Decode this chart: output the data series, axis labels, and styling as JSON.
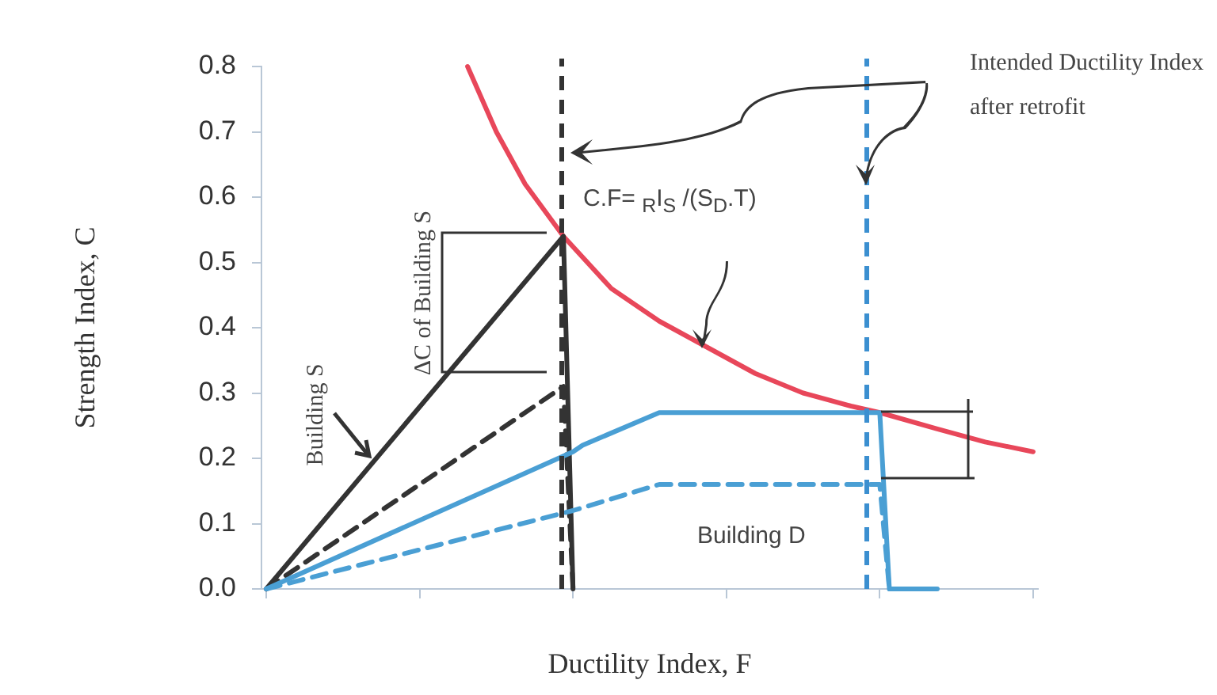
{
  "chart_data": {
    "type": "line",
    "xlabel": "Ductility Index, F",
    "ylabel": "Strength Index, C",
    "categories": [
      null,
      null,
      null,
      null,
      null,
      null,
      null,
      null,
      null,
      null,
      null,
      null,
      null,
      null,
      null,
      null,
      null,
      null,
      null,
      null,
      null,
      null,
      null,
      null,
      null,
      null,
      null,
      null,
      null,
      null,
      null,
      null,
      null,
      null,
      null,
      null,
      null,
      null,
      null,
      null,
      null,
      null,
      null,
      null,
      null,
      null,
      null,
      null,
      null,
      null,
      null,
      null,
      null,
      null,
      null,
      null,
      null,
      null,
      null,
      null,
      null,
      null,
      null,
      null,
      null,
      null,
      null,
      null,
      null,
      null,
      null,
      null,
      null,
      null,
      null,
      null,
      null,
      null,
      null,
      null,
      null
    ],
    "ylim": [
      0,
      0.8
    ],
    "yticks": [
      {
        "value": 0,
        "label": "0.0"
      },
      {
        "value": 0.1,
        "label": "0.1"
      },
      {
        "value": 0.2,
        "label": "0.2"
      },
      {
        "value": 0.3,
        "label": "0.3"
      },
      {
        "value": 0.4,
        "label": "0.4"
      },
      {
        "value": 0.5,
        "label": "0.5"
      },
      {
        "value": 0.6,
        "label": "0.6"
      },
      {
        "value": 0.7,
        "label": "0.7"
      },
      {
        "value": 0.8,
        "label": "0.8"
      }
    ],
    "grid": false,
    "legend": false,
    "marker": "none",
    "series": [
      {
        "color": "#e8475a",
        "line_style": "solid",
        "values": [
          null,
          null,
          null,
          null,
          null,
          null,
          null,
          null,
          null,
          null,
          null,
          null,
          null,
          null,
          null,
          null,
          null,
          null,
          null,
          null,
          null,
          0.8,
          null,
          null,
          0.7,
          null,
          null,
          0.62,
          null,
          null,
          null,
          0.54,
          null,
          null,
          null,
          null,
          0.46,
          null,
          null,
          null,
          null,
          0.41,
          null,
          null,
          null,
          null,
          0.37,
          null,
          null,
          null,
          null,
          0.33,
          null,
          null,
          null,
          null,
          0.3,
          null,
          null,
          null,
          null,
          0.28,
          null,
          null,
          0.27,
          null,
          null,
          null,
          null,
          null,
          0.245,
          null,
          null,
          null,
          null,
          0.225,
          null,
          null,
          null,
          null,
          0.21
        ]
      },
      {
        "color": "#333333",
        "line_style": "solid",
        "values": [
          0,
          null,
          null,
          null,
          null,
          null,
          null,
          null,
          null,
          null,
          null,
          null,
          null,
          null,
          null,
          null,
          null,
          null,
          null,
          null,
          null,
          null,
          null,
          null,
          null,
          null,
          null,
          null,
          null,
          null,
          null,
          0.54,
          0,
          null,
          null,
          null,
          null,
          null,
          null,
          null,
          null,
          null,
          null,
          null,
          null,
          null,
          null,
          null,
          null,
          null,
          null,
          null,
          null,
          null,
          null,
          null,
          null,
          null,
          null,
          null,
          null,
          null,
          null,
          null,
          null,
          null,
          null,
          null,
          null,
          null,
          null,
          null,
          null,
          null,
          null,
          null,
          null,
          null,
          null,
          null,
          null
        ]
      },
      {
        "color": "#333333",
        "line_style": "dashed",
        "values": [
          0,
          null,
          null,
          null,
          null,
          null,
          null,
          null,
          null,
          null,
          null,
          null,
          null,
          null,
          null,
          null,
          null,
          null,
          null,
          null,
          null,
          null,
          null,
          null,
          null,
          null,
          null,
          null,
          null,
          null,
          null,
          0.31,
          0,
          null,
          null,
          null,
          null,
          null,
          null,
          null,
          null,
          null,
          null,
          null,
          null,
          null,
          null,
          null,
          null,
          null,
          null,
          null,
          null,
          null,
          null,
          null,
          null,
          null,
          null,
          null,
          null,
          null,
          null,
          null,
          null,
          null,
          null,
          null,
          null,
          null,
          null,
          null,
          null,
          null,
          null,
          null,
          null,
          null,
          null,
          null,
          null
        ]
      },
      {
        "color": "#4a9fd4",
        "line_style": "solid",
        "values": [
          0,
          null,
          null,
          null,
          null,
          null,
          null,
          null,
          null,
          null,
          null,
          null,
          null,
          null,
          null,
          null,
          null,
          null,
          null,
          null,
          null,
          null,
          null,
          null,
          null,
          null,
          null,
          null,
          null,
          null,
          null,
          null,
          0.21,
          0.22,
          null,
          null,
          null,
          null,
          null,
          null,
          null,
          0.27,
          null,
          null,
          null,
          null,
          null,
          null,
          null,
          null,
          null,
          null,
          null,
          null,
          null,
          null,
          null,
          null,
          null,
          null,
          null,
          null,
          null,
          null,
          0.27,
          0,
          null,
          null,
          null,
          null,
          0,
          null,
          null,
          null,
          null,
          null,
          null,
          null,
          null,
          null,
          null
        ]
      },
      {
        "color": "#4a9fd4",
        "line_style": "dashed",
        "values": [
          0,
          null,
          null,
          null,
          null,
          null,
          null,
          null,
          null,
          null,
          null,
          null,
          null,
          null,
          null,
          null,
          null,
          null,
          null,
          null,
          null,
          null,
          null,
          null,
          null,
          null,
          null,
          null,
          null,
          null,
          null,
          null,
          0.12,
          null,
          null,
          null,
          null,
          null,
          null,
          null,
          null,
          0.16,
          null,
          null,
          null,
          null,
          null,
          null,
          null,
          null,
          null,
          null,
          null,
          null,
          null,
          null,
          null,
          null,
          null,
          null,
          null,
          null,
          null,
          null,
          0.16,
          0,
          null,
          null,
          null,
          null,
          null,
          null,
          null,
          null,
          null,
          null,
          null,
          null,
          null,
          null,
          null
        ]
      }
    ],
    "annotations": [
      "Intended Ductility Index after retrofit",
      "C.F= $_{R}$I$_{S}$ /(S$_{D}$.T)",
      "ΔC of Building S",
      "Building S",
      "Building D"
    ]
  }
}
